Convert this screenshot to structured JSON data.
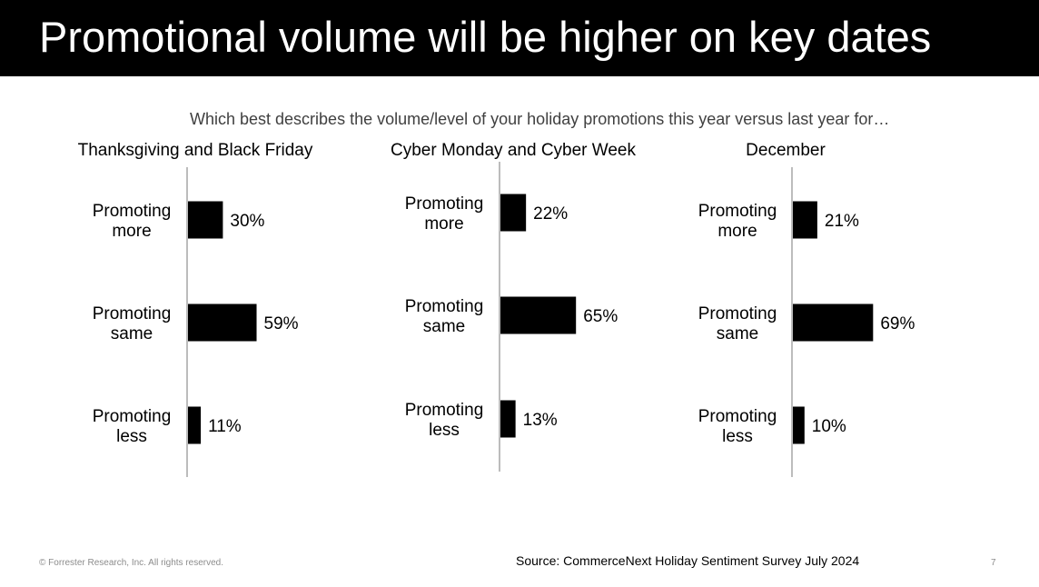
{
  "header": {
    "title": "Promotional volume will be higher on key dates"
  },
  "question": "Which best describes the volume/level of your holiday promotions this year versus last year for…",
  "colors": {
    "bar": "#000000",
    "axis": "#a6a6a6",
    "header_bg": "#000000"
  },
  "chart_data": [
    {
      "type": "bar",
      "orientation": "horizontal",
      "title": "Thanksgiving and Black Friday",
      "categories": [
        [
          "Promoting",
          "more"
        ],
        [
          "Promoting",
          "same"
        ],
        [
          "Promoting",
          "less"
        ]
      ],
      "values": [
        30,
        59,
        11
      ],
      "labels": [
        "30%",
        "59%",
        "11%"
      ]
    },
    {
      "type": "bar",
      "orientation": "horizontal",
      "title": "Cyber Monday and Cyber Week",
      "categories": [
        [
          "Promoting",
          "more"
        ],
        [
          "Promoting",
          "same"
        ],
        [
          "Promoting",
          "less"
        ]
      ],
      "values": [
        22,
        65,
        13
      ],
      "labels": [
        "22%",
        "65%",
        "13%"
      ]
    },
    {
      "type": "bar",
      "orientation": "horizontal",
      "title": "December",
      "categories": [
        [
          "Promoting",
          "more"
        ],
        [
          "Promoting",
          "same"
        ],
        [
          "Promoting",
          "less"
        ]
      ],
      "values": [
        21,
        69,
        10
      ],
      "labels": [
        "21%",
        "69%",
        "10%"
      ]
    }
  ],
  "footer": {
    "copyright": "© Forrester Research, Inc. All rights reserved.",
    "source": "Source: CommerceNext Holiday Sentiment Survey July 2024",
    "page": "7"
  }
}
